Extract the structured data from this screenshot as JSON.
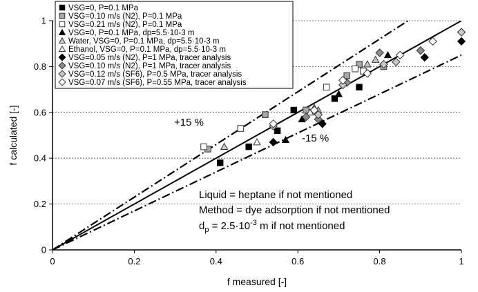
{
  "chart_data": {
    "type": "scatter",
    "xlabel": "f measured [-]",
    "ylabel": "f calculated [-]",
    "xlim": [
      0,
      1
    ],
    "ylim": [
      0,
      1
    ],
    "xticks": [
      "0",
      "0.2",
      "0.4",
      "0.6",
      "0.8",
      "1"
    ],
    "yticks": [
      "0",
      "0.2",
      "0.4",
      "0.6",
      "0.8",
      "1"
    ],
    "grid": "horizontal dashed",
    "legend_position": "top-left",
    "reference_lines": [
      {
        "label": "",
        "style": "solid",
        "slope": 1.0
      },
      {
        "label": "+15 %",
        "style": "dash-dot",
        "slope": 1.15
      },
      {
        "label": "-15 %",
        "style": "dash-dot",
        "slope": 0.85
      }
    ],
    "annotations": {
      "plus15": "+15 %",
      "minus15": "-15 %",
      "note1": "Liquid = heptane if not mentioned",
      "note2": "Method = dye adsorption if not mentioned",
      "note3_pre": "d",
      "note3_sub": "p",
      "note3_post": " = 2.5·10",
      "note3_sup": "-3",
      "note3_tail": " m if not mentioned"
    },
    "series": [
      {
        "name": "VSG=0, P=0.1 MPa",
        "marker": "square",
        "fill": "#000000",
        "points": [
          [
            0.41,
            0.38
          ],
          [
            0.48,
            0.45
          ],
          [
            0.55,
            0.52
          ],
          [
            0.59,
            0.61
          ],
          [
            0.69,
            0.66
          ],
          [
            0.75,
            0.71
          ]
        ]
      },
      {
        "name": "VSG=0.10 m/s (N2), P=0.1 MPa",
        "marker": "square",
        "fill": "#a6a6a6",
        "points": [
          [
            0.38,
            0.44
          ],
          [
            0.52,
            0.59
          ],
          [
            0.62,
            0.61
          ],
          [
            0.72,
            0.76
          ],
          [
            0.75,
            0.81
          ],
          [
            0.81,
            0.8
          ]
        ]
      },
      {
        "name": "VSG=0.21 m/s (N2), P=0.1 MPa",
        "marker": "square",
        "fill": "#ffffff",
        "points": [
          [
            0.37,
            0.45
          ],
          [
            0.46,
            0.53
          ],
          [
            0.67,
            0.71
          ],
          [
            0.74,
            0.79
          ],
          [
            0.76,
            0.78
          ]
        ]
      },
      {
        "name": "VSG=0, P=0.1 MPa, dp=5.5·10-3 m",
        "marker": "triangle",
        "fill": "#000000",
        "points": [
          [
            0.57,
            0.48
          ],
          [
            0.61,
            0.57
          ],
          [
            0.7,
            0.68
          ],
          [
            0.82,
            0.85
          ]
        ]
      },
      {
        "name": "Water, VSG=0, P=0.1 MPa, dp=5.5·10-3 m",
        "marker": "triangle",
        "fill": "#c8c8c8",
        "points": [
          [
            0.42,
            0.45
          ],
          [
            0.65,
            0.61
          ],
          [
            0.77,
            0.81
          ],
          [
            0.79,
            0.83
          ]
        ]
      },
      {
        "name": "Ethanol, VSG=0, P=0.1 MPa, dp=5.5·10-3 m",
        "marker": "triangle",
        "fill": "#ffffff",
        "points": [
          [
            0.5,
            0.47
          ],
          [
            0.63,
            0.6
          ],
          [
            0.64,
            0.62
          ]
        ]
      },
      {
        "name": "VSG=0.05 m/s (N2), P=1 MPa, tracer analysis",
        "marker": "diamond",
        "fill": "#000000",
        "points": [
          [
            0.54,
            0.47
          ],
          [
            0.66,
            0.55
          ],
          [
            0.91,
            0.84
          ],
          [
            1.0,
            0.91
          ]
        ]
      },
      {
        "name": "VSG=0.10 m/s (N2), P=1 MPa, tracer analysis",
        "marker": "diamond",
        "fill": "#8c8c8c",
        "points": [
          [
            0.62,
            0.58
          ],
          [
            0.65,
            0.57
          ],
          [
            0.72,
            0.73
          ],
          [
            0.8,
            0.86
          ],
          [
            0.9,
            0.87
          ]
        ]
      },
      {
        "name": "VSG=0.12 m/s (SF6), P=0.5 MPa, tracer analysis",
        "marker": "diamond",
        "fill": "#c8c8c8",
        "points": [
          [
            0.54,
            0.54
          ],
          [
            0.65,
            0.59
          ],
          [
            0.71,
            0.72
          ],
          [
            0.81,
            0.81
          ],
          [
            0.84,
            0.82
          ],
          [
            1.0,
            0.95
          ]
        ]
      },
      {
        "name": "VSG=0.07 m/s (SF6), P=0.55 MPa, tracer analysis",
        "marker": "diamond",
        "fill": "#ffffff",
        "points": [
          [
            0.54,
            0.55
          ],
          [
            0.64,
            0.61
          ],
          [
            0.71,
            0.74
          ],
          [
            0.77,
            0.77
          ],
          [
            0.85,
            0.85
          ],
          [
            0.93,
            0.91
          ]
        ]
      }
    ]
  }
}
